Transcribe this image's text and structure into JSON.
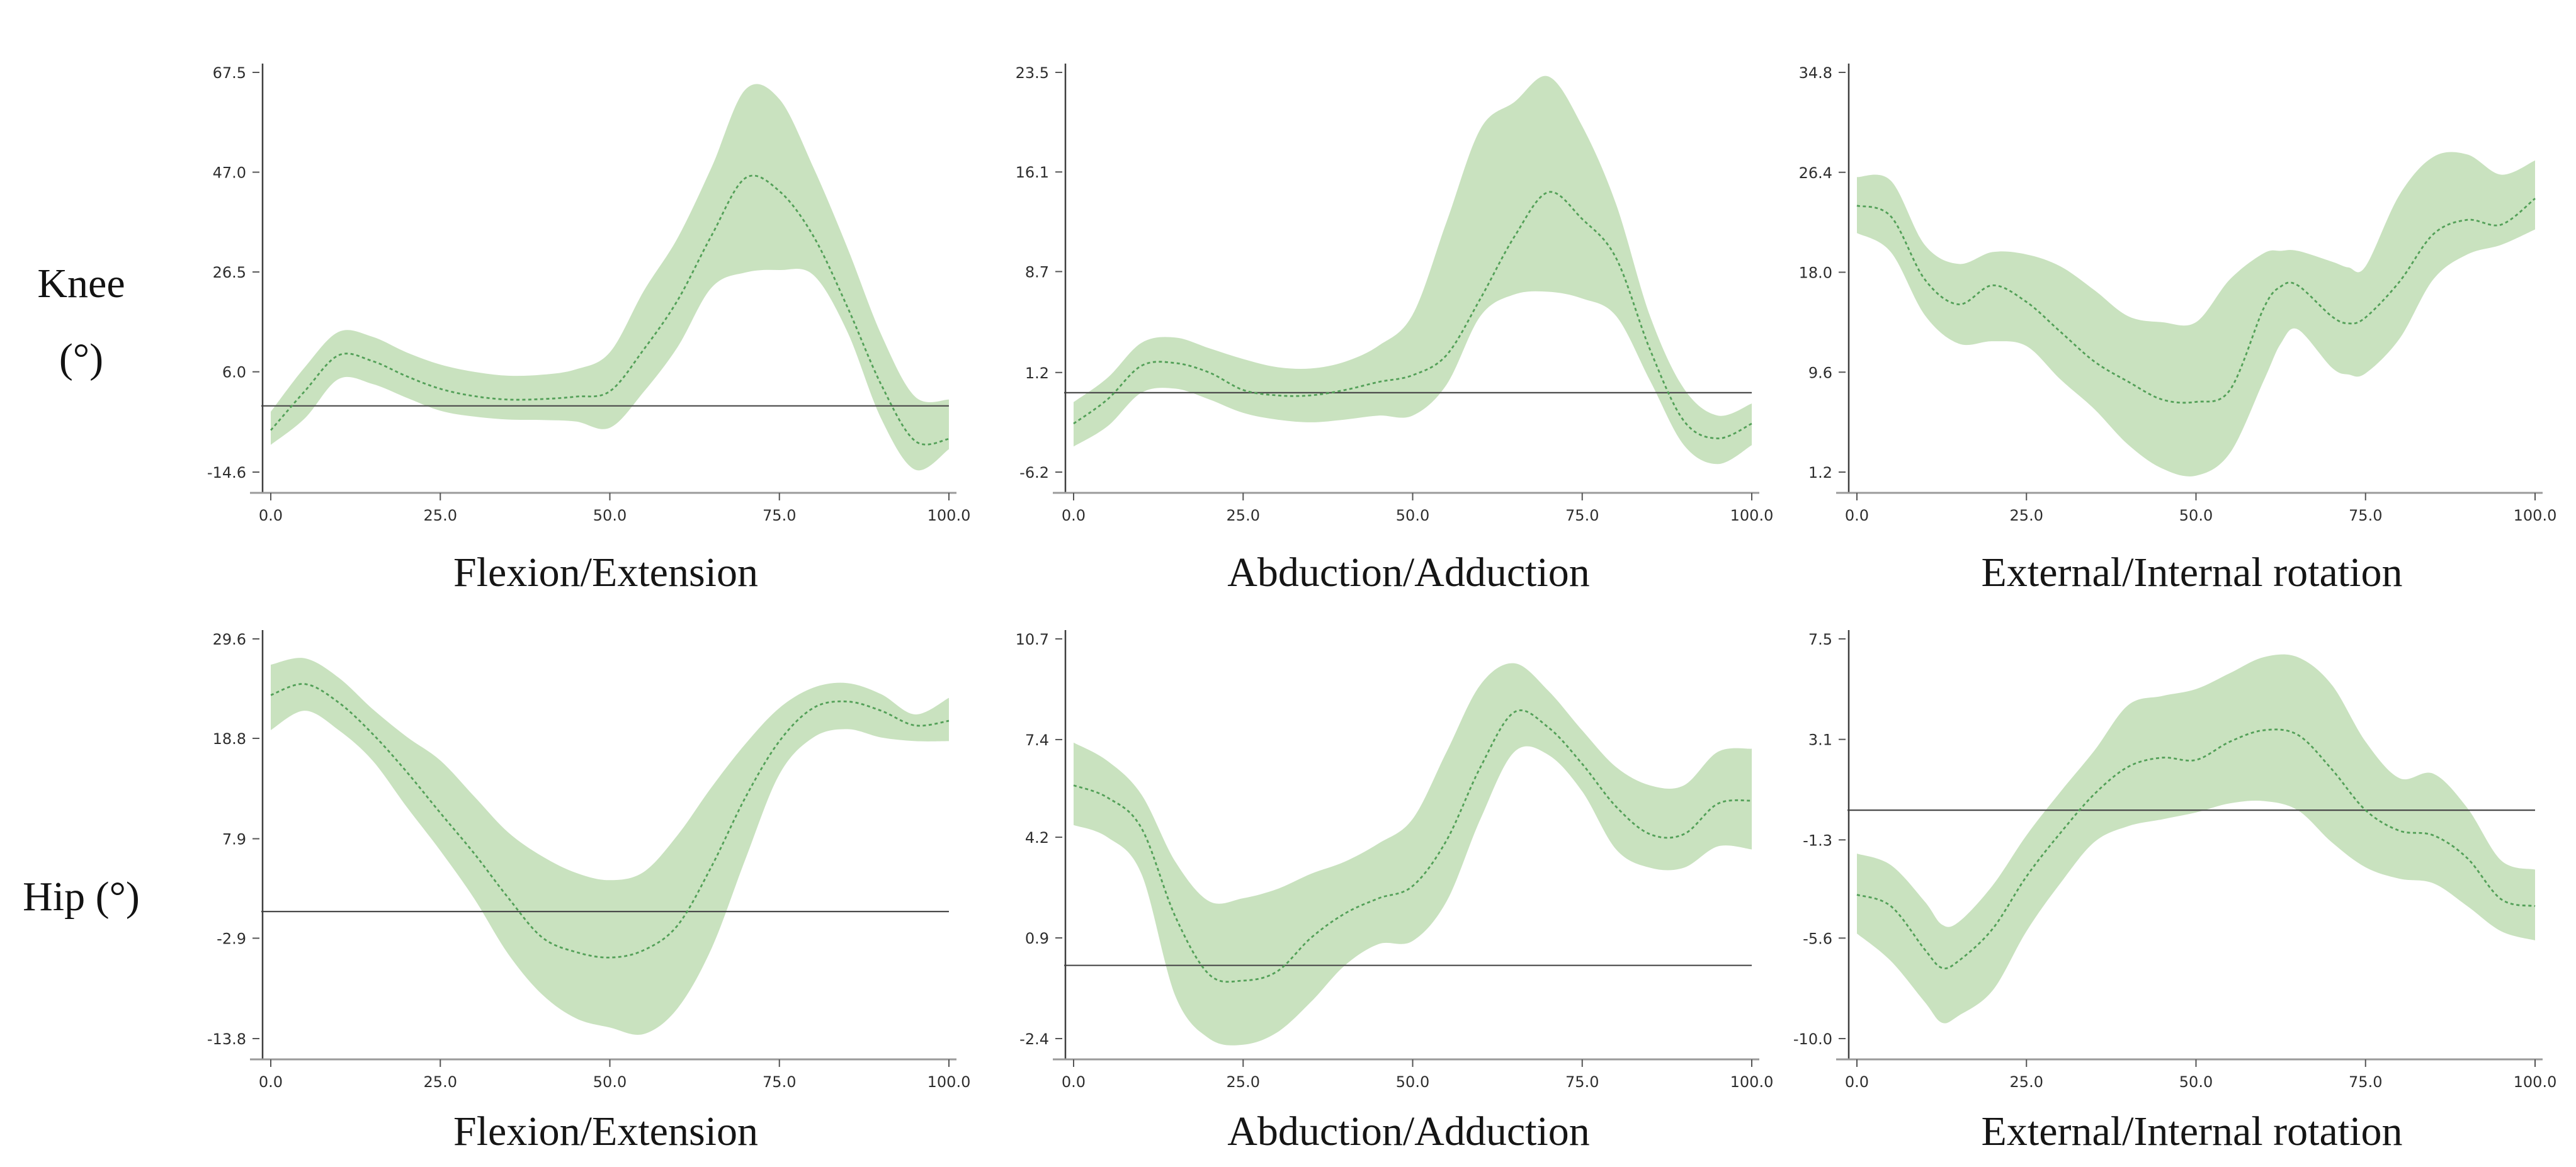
{
  "rows": [
    {
      "label_lines": [
        "Knee",
        "(°)"
      ]
    },
    {
      "label_lines": [
        "Hip (°)"
      ]
    }
  ],
  "colors": {
    "band": "#c9e2bf",
    "mean_line": "#53a058",
    "reference_line": "#4a4a4a",
    "y_axis": "#3f3f3f",
    "x_axis": "#9a9a9a",
    "tick": "#555555",
    "tick_text": "#2e2e2e"
  },
  "chart_data": [
    {
      "type": "line",
      "title": "Flexion/Extension",
      "row_label": "Knee (°)",
      "xlabel": "",
      "ylabel": "Knee (°)",
      "xlim": [
        0,
        100
      ],
      "ylim": [
        -14.6,
        67.5
      ],
      "grid": false,
      "x_tick_values": [
        0,
        25,
        50,
        75,
        100
      ],
      "x_tick_labels": [
        "0.0",
        "25.0",
        "50.0",
        "75.0",
        "100.0"
      ],
      "y_ticks": [
        67.5,
        47.0,
        26.5,
        6.0,
        -14.6
      ],
      "y_tick_labels": [
        "67.5",
        "47.0",
        "26.5",
        "6.0",
        "-14.6"
      ],
      "reference_line": -1.0,
      "x": [
        0,
        5,
        10,
        15,
        20,
        25,
        30,
        35,
        40,
        45,
        50,
        55,
        60,
        65,
        70,
        75,
        80,
        85,
        90,
        95,
        100
      ],
      "series": [
        {
          "name": "mean",
          "values": [
            -6.0,
            2.0,
            9.4,
            8.2,
            5.1,
            2.5,
            1.0,
            0.3,
            0.4,
            0.9,
            2.0,
            10.6,
            20.7,
            34.0,
            45.8,
            43.1,
            33.9,
            19.4,
            3.4,
            -8.2,
            -7.8
          ]
        },
        {
          "name": "upper_band",
          "values": [
            -2.2,
            6.9,
            14.2,
            13.2,
            10.0,
            7.5,
            6.0,
            5.2,
            5.4,
            6.5,
            10.0,
            22.6,
            33.5,
            48.0,
            64.0,
            62.0,
            48.0,
            31.6,
            13.7,
            0.9,
            0.3
          ]
        },
        {
          "name": "lower_band",
          "values": [
            -9.0,
            -3.6,
            4.5,
            3.5,
            0.7,
            -2.0,
            -3.2,
            -3.8,
            -3.9,
            -4.2,
            -5.5,
            1.9,
            11.1,
            23.3,
            26.4,
            26.9,
            25.9,
            14.3,
            -3.6,
            -14.1,
            -9.9
          ]
        }
      ]
    },
    {
      "type": "line",
      "title": "Abduction/Adduction",
      "row_label": "Knee (°)",
      "xlabel": "",
      "ylabel": "Knee (°)",
      "xlim": [
        0,
        100
      ],
      "ylim": [
        -6.2,
        23.5
      ],
      "grid": false,
      "x_tick_values": [
        0,
        25,
        50,
        75,
        100
      ],
      "x_tick_labels": [
        "0.0",
        "25.0",
        "50.0",
        "75.0",
        "100.0"
      ],
      "y_ticks": [
        23.5,
        16.1,
        8.7,
        1.2,
        -6.2
      ],
      "y_tick_labels": [
        "23.5",
        "16.1",
        "8.7",
        "1.2",
        "-6.2"
      ],
      "reference_line": -0.3,
      "x": [
        0,
        5,
        10,
        15,
        20,
        25,
        30,
        35,
        40,
        45,
        50,
        55,
        60,
        65,
        70,
        75,
        80,
        85,
        90,
        95,
        100
      ],
      "series": [
        {
          "name": "mean",
          "values": [
            -2.6,
            -0.8,
            1.7,
            1.9,
            1.2,
            -0.1,
            -0.5,
            -0.5,
            -0.1,
            0.5,
            1.0,
            2.5,
            6.7,
            11.3,
            14.6,
            12.6,
            9.7,
            2.9,
            -2.4,
            -3.7,
            -2.6
          ]
        },
        {
          "name": "upper_band",
          "values": [
            -1.0,
            0.8,
            3.4,
            3.8,
            3.0,
            2.2,
            1.6,
            1.5,
            2.0,
            3.2,
            5.5,
            12.4,
            19.3,
            21.3,
            23.2,
            19.5,
            13.7,
            5.4,
            0.0,
            -2.0,
            -1.1
          ]
        },
        {
          "name": "lower_band",
          "values": [
            -4.3,
            -2.8,
            -0.3,
            0.0,
            -0.8,
            -1.8,
            -2.3,
            -2.5,
            -2.3,
            -2.0,
            -2.0,
            0.3,
            5.4,
            7.0,
            7.2,
            6.7,
            5.4,
            0.6,
            -4.2,
            -5.6,
            -4.2
          ]
        }
      ]
    },
    {
      "type": "line",
      "title": "External/Internal rotation",
      "row_label": "Knee (°)",
      "xlabel": "",
      "ylabel": "Knee (°)",
      "xlim": [
        0,
        100
      ],
      "ylim": [
        1.2,
        34.8
      ],
      "grid": false,
      "x_tick_values": [
        0,
        25,
        50,
        75,
        100
      ],
      "x_tick_labels": [
        "0.0",
        "25.0",
        "50.0",
        "75.0",
        "100.0"
      ],
      "y_ticks": [
        34.8,
        26.4,
        18.0,
        9.6,
        1.2
      ],
      "y_tick_labels": [
        "34.8",
        "26.4",
        "18.0",
        "9.6",
        "1.2"
      ],
      "reference_line": null,
      "x": [
        0,
        5,
        10,
        15,
        20,
        25,
        30,
        35,
        40,
        45,
        50,
        55,
        60,
        62.5,
        65,
        70,
        72.5,
        75,
        80,
        85,
        90,
        95,
        100
      ],
      "series": [
        {
          "name": "mean",
          "values": [
            23.6,
            22.7,
            17.4,
            15.3,
            16.9,
            15.5,
            13.0,
            10.5,
            8.8,
            7.3,
            7.1,
            8.1,
            15.0,
            16.8,
            16.9,
            14.3,
            13.7,
            14.2,
            17.2,
            21.2,
            22.4,
            22.0,
            24.2
          ]
        },
        {
          "name": "upper_band",
          "values": [
            26.0,
            25.7,
            20.3,
            18.7,
            19.7,
            19.5,
            18.5,
            16.5,
            14.3,
            13.8,
            13.8,
            17.4,
            19.6,
            19.8,
            19.8,
            18.9,
            18.4,
            18.5,
            24.5,
            27.7,
            27.9,
            26.2,
            27.4
          ]
        },
        {
          "name": "lower_band",
          "values": [
            21.3,
            19.7,
            14.4,
            12.0,
            12.2,
            11.8,
            9.0,
            6.5,
            3.5,
            1.5,
            0.9,
            2.8,
            8.9,
            12.0,
            13.2,
            10.0,
            9.4,
            9.5,
            12.4,
            17.4,
            19.5,
            20.3,
            21.6
          ]
        }
      ]
    },
    {
      "type": "line",
      "title": "Flexion/Extension",
      "row_label": "Hip (°)",
      "xlabel": "",
      "ylabel": "Hip (°)",
      "xlim": [
        0,
        100
      ],
      "ylim": [
        -13.8,
        29.6
      ],
      "grid": false,
      "x_tick_values": [
        0,
        25,
        50,
        75,
        100
      ],
      "x_tick_labels": [
        "0.0",
        "25.0",
        "50.0",
        "75.0",
        "100.0"
      ],
      "y_ticks": [
        29.6,
        18.8,
        7.9,
        -2.9,
        -13.8
      ],
      "y_tick_labels": [
        "29.6",
        "18.8",
        "7.9",
        "-2.9",
        "-13.8"
      ],
      "reference_line": 0.0,
      "x": [
        0,
        5,
        10,
        15,
        20,
        25,
        30,
        35,
        40,
        45,
        50,
        55,
        60,
        65,
        70,
        75,
        80,
        85,
        90,
        95,
        100
      ],
      "series": [
        {
          "name": "mean",
          "values": [
            23.5,
            24.7,
            22.7,
            19.3,
            15.2,
            10.7,
            6.3,
            1.5,
            -2.8,
            -4.4,
            -5.0,
            -4.2,
            -1.5,
            4.9,
            12.4,
            18.5,
            22.1,
            22.8,
            21.8,
            20.2,
            20.7
          ]
        },
        {
          "name": "upper_band",
          "values": [
            26.8,
            27.5,
            25.4,
            22.0,
            19.0,
            16.4,
            12.5,
            8.6,
            6.0,
            4.2,
            3.4,
            4.3,
            8.3,
            13.5,
            18.2,
            22.1,
            24.3,
            24.8,
            23.6,
            21.4,
            23.2
          ]
        },
        {
          "name": "lower_band",
          "values": [
            19.7,
            21.8,
            19.7,
            16.4,
            11.4,
            6.6,
            1.4,
            -4.6,
            -9.0,
            -11.6,
            -12.6,
            -13.3,
            -10.5,
            -4.0,
            5.7,
            14.9,
            18.9,
            19.8,
            18.9,
            18.5,
            18.5
          ]
        }
      ]
    },
    {
      "type": "line",
      "title": "Abduction/Adduction",
      "row_label": "Hip (°)",
      "xlabel": "",
      "ylabel": "Hip (°)",
      "xlim": [
        0,
        100
      ],
      "ylim": [
        -2.4,
        10.7
      ],
      "grid": false,
      "x_tick_values": [
        0,
        25,
        50,
        75,
        100
      ],
      "x_tick_labels": [
        "0.0",
        "25.0",
        "50.0",
        "75.0",
        "100.0"
      ],
      "y_ticks": [
        10.7,
        7.4,
        4.2,
        0.9,
        -2.4
      ],
      "y_tick_labels": [
        "10.7",
        "7.4",
        "4.2",
        "0.9",
        "-2.4"
      ],
      "reference_line": 0.0,
      "x": [
        0,
        5,
        10,
        15,
        20,
        25,
        30,
        35,
        40,
        45,
        50,
        55,
        60,
        65,
        70,
        75,
        80,
        85,
        90,
        95,
        100
      ],
      "series": [
        {
          "name": "mean",
          "values": [
            5.9,
            5.5,
            4.5,
            1.6,
            -0.3,
            -0.5,
            -0.2,
            0.9,
            1.7,
            2.2,
            2.6,
            4.1,
            6.5,
            8.3,
            7.8,
            6.6,
            5.2,
            4.3,
            4.3,
            5.3,
            5.4
          ]
        },
        {
          "name": "upper_band",
          "values": [
            7.3,
            6.7,
            5.6,
            3.4,
            2.1,
            2.2,
            2.5,
            3.0,
            3.4,
            4.0,
            4.8,
            7.0,
            9.2,
            9.9,
            9.0,
            7.7,
            6.5,
            5.9,
            5.9,
            7.0,
            7.1
          ]
        },
        {
          "name": "lower_band",
          "values": [
            4.6,
            4.2,
            3.0,
            -1.0,
            -2.4,
            -2.6,
            -2.2,
            -1.2,
            0.0,
            0.7,
            0.8,
            2.1,
            4.8,
            7.0,
            6.9,
            5.7,
            3.8,
            3.2,
            3.2,
            3.9,
            3.8
          ]
        }
      ]
    },
    {
      "type": "line",
      "title": "External/Internal rotation",
      "row_label": "Hip (°)",
      "xlabel": "",
      "ylabel": "Hip (°)",
      "xlim": [
        0,
        100
      ],
      "ylim": [
        -10.0,
        7.5
      ],
      "grid": false,
      "x_tick_values": [
        0,
        25,
        50,
        75,
        100
      ],
      "x_tick_labels": [
        "0.0",
        "25.0",
        "50.0",
        "75.0",
        "100.0"
      ],
      "y_ticks": [
        7.5,
        3.1,
        -1.3,
        -5.6,
        -10.0
      ],
      "y_tick_labels": [
        "7.5",
        "3.1",
        "-1.3",
        "-5.6",
        "-10.0"
      ],
      "reference_line": 0.0,
      "x": [
        0,
        5,
        10,
        12.5,
        15,
        20,
        25,
        30,
        35,
        40,
        45,
        50,
        55,
        60,
        65,
        70,
        75,
        80,
        85,
        90,
        95,
        100
      ],
      "series": [
        {
          "name": "mean",
          "values": [
            -3.7,
            -4.2,
            -6.1,
            -6.9,
            -6.6,
            -5.2,
            -2.9,
            -1.0,
            0.7,
            1.9,
            2.3,
            2.2,
            3.0,
            3.5,
            3.3,
            1.8,
            0.0,
            -0.9,
            -1.1,
            -2.1,
            -3.9,
            -4.2
          ]
        },
        {
          "name": "upper_band",
          "values": [
            -1.9,
            -2.4,
            -4.0,
            -5.0,
            -4.9,
            -3.3,
            -1.1,
            0.8,
            2.6,
            4.6,
            5.0,
            5.3,
            6.0,
            6.7,
            6.7,
            5.5,
            3.0,
            1.4,
            1.6,
            0.1,
            -2.2,
            -2.6
          ]
        },
        {
          "name": "lower_band",
          "values": [
            -5.4,
            -6.6,
            -8.4,
            -9.3,
            -9.0,
            -7.9,
            -5.3,
            -3.2,
            -1.4,
            -0.7,
            -0.4,
            -0.1,
            0.3,
            0.4,
            0.0,
            -1.4,
            -2.5,
            -3.0,
            -3.2,
            -4.2,
            -5.3,
            -5.7
          ]
        }
      ]
    }
  ]
}
